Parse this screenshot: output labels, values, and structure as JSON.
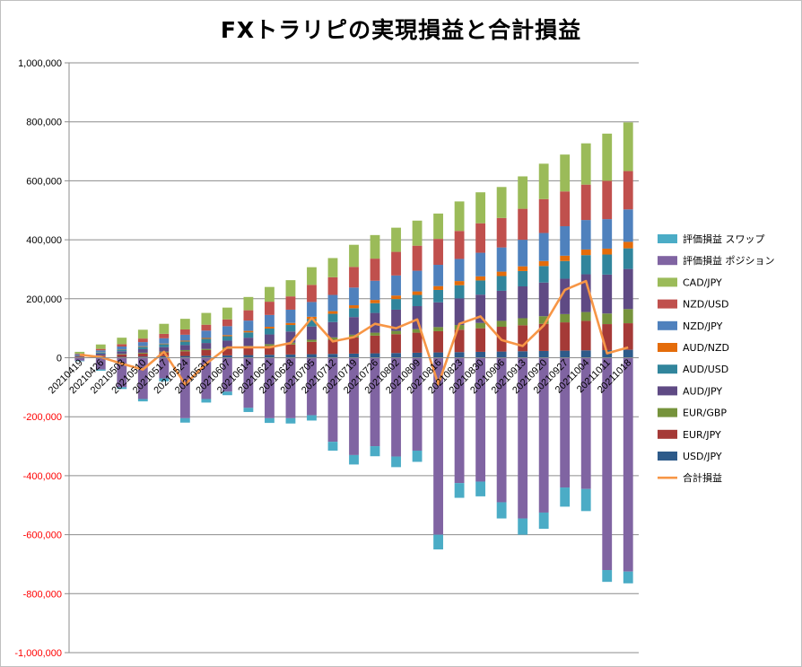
{
  "chart_data": {
    "type": "bar",
    "subtype": "stacked-bar-with-line",
    "title": "FXトラリピの実現損益と合計損益",
    "xlabel": "",
    "ylabel": "",
    "ylim": [
      -1000000,
      1000000
    ],
    "y_ticks": [
      1000000,
      800000,
      600000,
      400000,
      200000,
      0,
      -200000,
      -400000,
      -600000,
      -800000,
      -1000000
    ],
    "y_tick_labels": [
      "1,000,000",
      "800,000",
      "600,000",
      "400,000",
      "200,000",
      "0",
      "-200,000",
      "-400,000",
      "-600,000",
      "-800,000",
      "-1,000,000"
    ],
    "negative_tick_color": "#ff0000",
    "grid": true,
    "legend_position": "right",
    "categories": [
      "20210419",
      "20210426",
      "20210503",
      "20210510",
      "20210517",
      "20210524",
      "20210531",
      "20210607",
      "20210614",
      "20210621",
      "20210628",
      "20210705",
      "20210712",
      "20210719",
      "20210726",
      "20210802",
      "20210809",
      "20210816",
      "20210823",
      "20210830",
      "20210906",
      "20210913",
      "20210920",
      "20210927",
      "20211004",
      "20211011",
      "20211018"
    ],
    "category_labels": [
      "20210419",
      "20210426",
      "20210503",
      "20210510",
      "20210517",
      "20210524",
      "20210531",
      "20210607",
      "20210614",
      "20210621",
      "20210628",
      "20210705",
      "20210712",
      "20210719",
      "20210726",
      "20210802",
      "20210809",
      "20210816",
      "20210823",
      "20210830",
      "20210906",
      "20210913",
      "20210920",
      "20210927",
      "20211004",
      "20211011",
      "20211018"
    ],
    "positive_stack_order": [
      "USD/JPY",
      "EUR/JPY",
      "EUR/GBP",
      "AUD/JPY",
      "AUD/USD",
      "AUD/NZD",
      "NZD/JPY",
      "NZD/USD",
      "CAD/JPY"
    ],
    "negative_stack_order": [
      "評価損益 ポジション",
      "評価損益 スワップ"
    ],
    "legend_order": [
      "評価損益 スワップ",
      "評価損益 ポジション",
      "CAD/JPY",
      "NZD/USD",
      "NZD/JPY",
      "AUD/NZD",
      "AUD/USD",
      "AUD/JPY",
      "EUR/GBP",
      "EUR/JPY",
      "USD/JPY",
      "合計損益"
    ],
    "series": [
      {
        "name": "USD/JPY",
        "kind": "bar",
        "color": "#2e5b8a",
        "values": [
          1000,
          2000,
          3000,
          4000,
          5000,
          6000,
          7000,
          8000,
          9000,
          10000,
          11000,
          12000,
          13000,
          14000,
          15000,
          16000,
          17000,
          18000,
          19000,
          20000,
          21000,
          22000,
          23000,
          24000,
          25000,
          26000,
          27000
        ]
      },
      {
        "name": "EUR/JPY",
        "kind": "bar",
        "color": "#a53a37",
        "values": [
          2000,
          5000,
          8000,
          10000,
          13000,
          16000,
          19000,
          22000,
          26000,
          30000,
          34000,
          42000,
          48000,
          55000,
          60000,
          64000,
          68000,
          72000,
          76000,
          80000,
          84000,
          88000,
          92000,
          96000,
          100000,
          88000,
          90000
        ]
      },
      {
        "name": "EUR/GBP",
        "kind": "bar",
        "color": "#76933c",
        "values": [
          500,
          1000,
          2000,
          3000,
          3000,
          4000,
          4000,
          5000,
          5000,
          6000,
          6000,
          7000,
          8000,
          9000,
          10000,
          11000,
          12000,
          14000,
          16000,
          18000,
          20000,
          24000,
          26000,
          28000,
          30000,
          36000,
          48000
        ]
      },
      {
        "name": "AUD/JPY",
        "kind": "bar",
        "color": "#5f4a84",
        "values": [
          3000,
          6000,
          9000,
          12000,
          15000,
          17000,
          20000,
          23000,
          28000,
          33000,
          38000,
          45000,
          52000,
          60000,
          67000,
          72000,
          78000,
          84000,
          90000,
          96000,
          102000,
          108000,
          114000,
          120000,
          128000,
          132000,
          136000
        ]
      },
      {
        "name": "AUD/USD",
        "kind": "bar",
        "color": "#31859c",
        "values": [
          2000,
          4000,
          6000,
          8000,
          10000,
          12000,
          14000,
          15000,
          18000,
          20000,
          22000,
          25000,
          28000,
          30000,
          33000,
          36000,
          38000,
          42000,
          45000,
          48000,
          50000,
          52000,
          56000,
          60000,
          65000,
          68000,
          70000
        ]
      },
      {
        "name": "AUD/NZD",
        "kind": "bar",
        "color": "#e46c0a",
        "values": [
          500,
          1000,
          1000,
          2000,
          2000,
          3000,
          3000,
          4000,
          5000,
          6000,
          7000,
          8000,
          9000,
          10000,
          11000,
          12000,
          12000,
          13000,
          14000,
          14000,
          15000,
          16000,
          17000,
          18000,
          19000,
          20000,
          22000
        ]
      },
      {
        "name": "NZD/JPY",
        "kind": "bar",
        "color": "#4f81bd",
        "values": [
          3000,
          6000,
          9000,
          14000,
          18000,
          20000,
          25000,
          30000,
          35000,
          40000,
          45000,
          50000,
          55000,
          60000,
          65000,
          68000,
          70000,
          72000,
          75000,
          80000,
          82000,
          90000,
          95000,
          100000,
          100000,
          100000,
          110000
        ]
      },
      {
        "name": "NZD/USD",
        "kind": "bar",
        "color": "#c0504d",
        "values": [
          2000,
          5000,
          8000,
          12000,
          15000,
          18000,
          20000,
          23000,
          35000,
          45000,
          45000,
          58000,
          60000,
          70000,
          75000,
          80000,
          85000,
          88000,
          95000,
          100000,
          100000,
          105000,
          115000,
          118000,
          120000,
          130000,
          130000
        ]
      },
      {
        "name": "CAD/JPY",
        "kind": "bar",
        "color": "#9bbb59",
        "values": [
          6000,
          15000,
          22000,
          30000,
          34000,
          36000,
          40000,
          40000,
          45000,
          50000,
          55000,
          60000,
          65000,
          75000,
          80000,
          82000,
          85000,
          86000,
          100000,
          105000,
          105000,
          110000,
          120000,
          125000,
          140000,
          160000,
          165000
        ]
      },
      {
        "name": "評価損益 ポジション",
        "kind": "bar",
        "color": "#8064a2",
        "values": [
          -10000,
          -40000,
          -100000,
          -140000,
          -70000,
          -205000,
          -140000,
          -115000,
          -170000,
          -205000,
          -205000,
          -195000,
          -285000,
          -330000,
          -300000,
          -335000,
          -315000,
          -600000,
          -425000,
          -420000,
          -490000,
          -545000,
          -525000,
          -440000,
          -445000,
          -720000,
          -725000
        ]
      },
      {
        "name": "評価損益 スワップ",
        "kind": "bar",
        "color": "#4bacc6",
        "values": [
          -2000,
          -4000,
          -6000,
          -8000,
          -10000,
          -15000,
          -12000,
          -12000,
          -14000,
          -16000,
          -18000,
          -18000,
          -30000,
          -32000,
          -34000,
          -36000,
          -38000,
          -50000,
          -50000,
          -50000,
          -55000,
          -55000,
          -55000,
          -65000,
          -75000,
          -40000,
          -40000
        ]
      },
      {
        "name": "合計損益",
        "kind": "line",
        "color": "#f79646",
        "values": [
          10000,
          2000,
          -20000,
          -40000,
          20000,
          -90000,
          -20000,
          35000,
          35000,
          35000,
          50000,
          135000,
          55000,
          70000,
          115000,
          100000,
          130000,
          -90000,
          115000,
          140000,
          60000,
          40000,
          110000,
          230000,
          260000,
          15000,
          35000
        ]
      }
    ]
  }
}
